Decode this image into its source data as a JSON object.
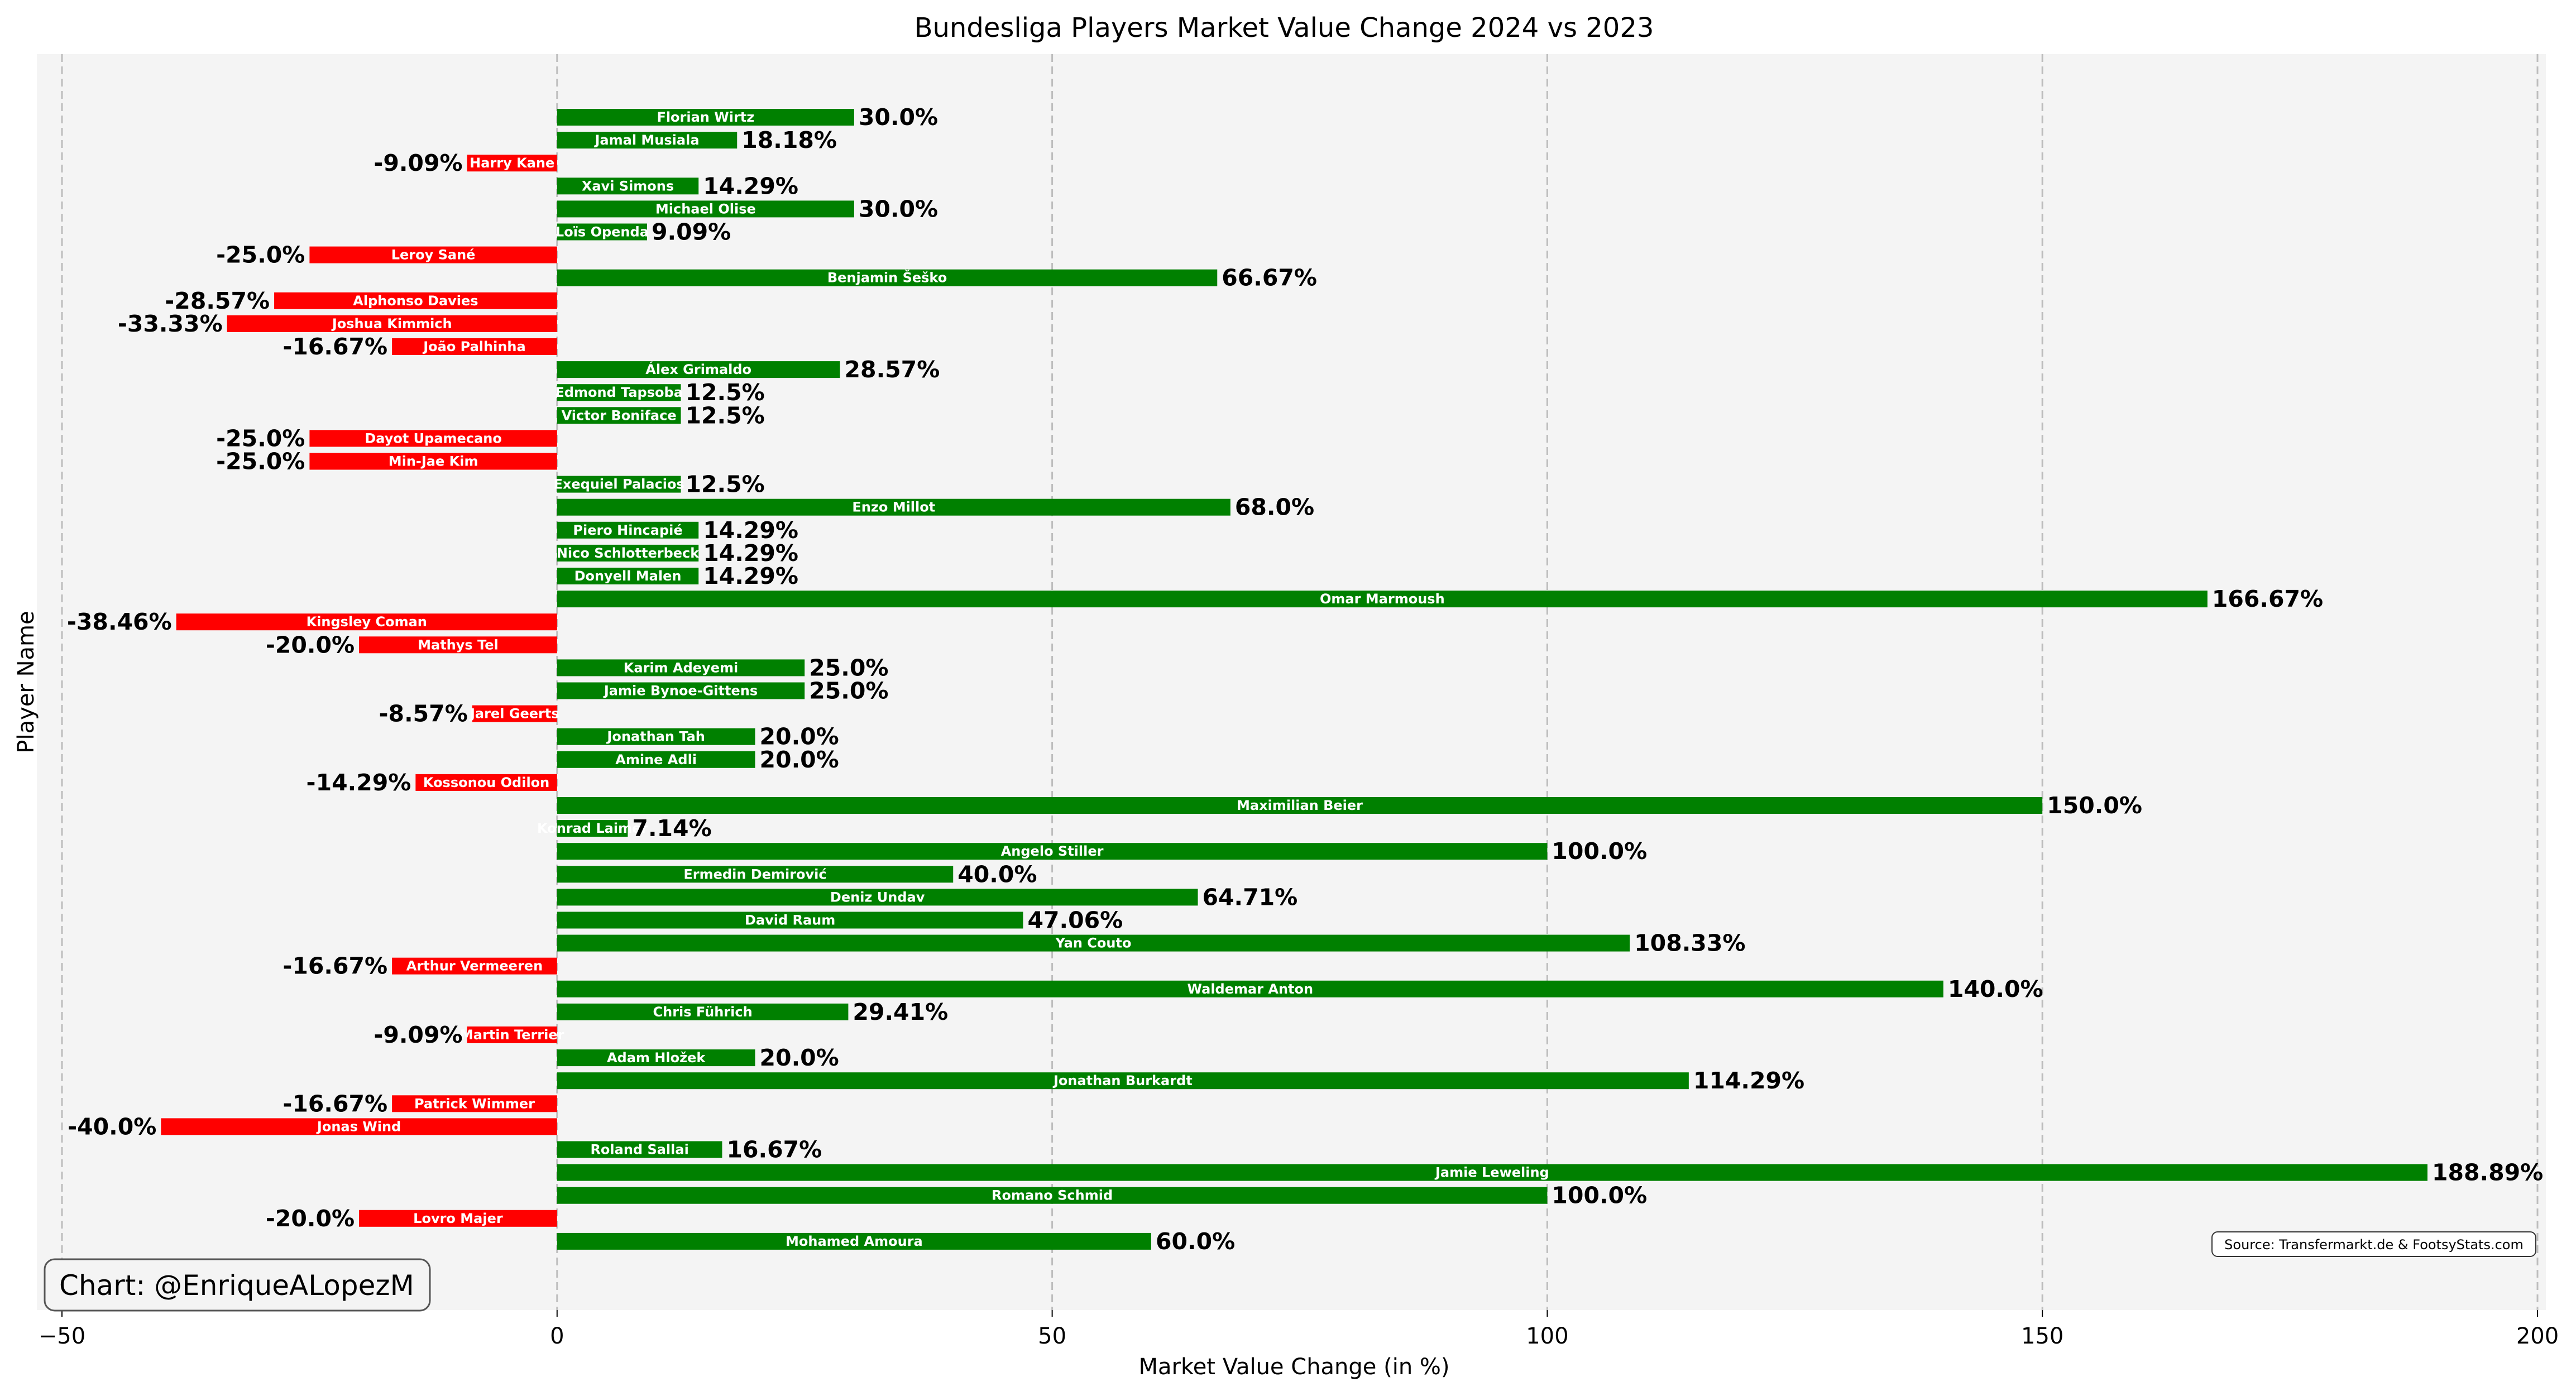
{
  "chart_data": {
    "type": "bar",
    "orientation": "horizontal",
    "title": "Bundesliga Players Market Value Change 2024 vs 2023",
    "xlabel": "Market Value Change (in %)",
    "ylabel": "Player Name",
    "xlim": [
      -50,
      200
    ],
    "xticks": [
      -50,
      0,
      50,
      100,
      150,
      200
    ],
    "grid": "vertical dashed",
    "positive_color": "#008000",
    "negative_color": "#ff0000",
    "credit": "Chart: @EnriqueALopezM",
    "source": "Source: Transfermarkt.de & FootsyStats.com",
    "bars": [
      {
        "name": "Florian Wirtz",
        "value": 30.0,
        "label": "30.0%"
      },
      {
        "name": "Jamal Musiala",
        "value": 18.18,
        "label": "18.18%"
      },
      {
        "name": "Harry Kane",
        "value": -9.09,
        "label": "-9.09%"
      },
      {
        "name": "Xavi Simons",
        "value": 14.29,
        "label": "14.29%"
      },
      {
        "name": "Michael Olise",
        "value": 30.0,
        "label": "30.0%"
      },
      {
        "name": "Loïs Openda",
        "value": 9.09,
        "label": "9.09%"
      },
      {
        "name": "Leroy Sané",
        "value": -25.0,
        "label": "-25.0%"
      },
      {
        "name": "Benjamin Šeško",
        "value": 66.67,
        "label": "66.67%"
      },
      {
        "name": "Alphonso Davies",
        "value": -28.57,
        "label": "-28.57%"
      },
      {
        "name": "Joshua Kimmich",
        "value": -33.33,
        "label": "-33.33%"
      },
      {
        "name": "João Palhinha",
        "value": -16.67,
        "label": "-16.67%"
      },
      {
        "name": "Álex Grimaldo",
        "value": 28.57,
        "label": "28.57%"
      },
      {
        "name": "Edmond Tapsoba",
        "value": 12.5,
        "label": "12.5%"
      },
      {
        "name": "Victor Boniface",
        "value": 12.5,
        "label": "12.5%"
      },
      {
        "name": "Dayot Upamecano",
        "value": -25.0,
        "label": "-25.0%"
      },
      {
        "name": "Min-Jae Kim",
        "value": -25.0,
        "label": "-25.0%"
      },
      {
        "name": "Exequiel Palacios",
        "value": 12.5,
        "label": "12.5%"
      },
      {
        "name": "Enzo Millot",
        "value": 68.0,
        "label": "68.0%"
      },
      {
        "name": "Piero Hincapié",
        "value": 14.29,
        "label": "14.29%"
      },
      {
        "name": "Nico Schlotterbeck",
        "value": 14.29,
        "label": "14.29%"
      },
      {
        "name": "Donyell Malen",
        "value": 14.29,
        "label": "14.29%"
      },
      {
        "name": "Omar Marmoush",
        "value": 166.67,
        "label": "166.67%"
      },
      {
        "name": "Kingsley Coman",
        "value": -38.46,
        "label": "-38.46%"
      },
      {
        "name": "Mathys Tel",
        "value": -20.0,
        "label": "-20.0%"
      },
      {
        "name": "Karim Adeyemi",
        "value": 25.0,
        "label": "25.0%"
      },
      {
        "name": "Jamie Bynoe-Gittens",
        "value": 25.0,
        "label": "25.0%"
      },
      {
        "name": "Jarel Geerts",
        "value": -8.57,
        "label": "-8.57%"
      },
      {
        "name": "Jonathan Tah",
        "value": 20.0,
        "label": "20.0%"
      },
      {
        "name": "Amine Adli",
        "value": 20.0,
        "label": "20.0%"
      },
      {
        "name": "Kossonou Odilon",
        "value": -14.29,
        "label": "-14.29%"
      },
      {
        "name": "Maximilian Beier",
        "value": 150.0,
        "label": "150.0%"
      },
      {
        "name": "Konrad Laimer",
        "value": 7.14,
        "label": "7.14%"
      },
      {
        "name": "Angelo Stiller",
        "value": 100.0,
        "label": "100.0%"
      },
      {
        "name": "Ermedin Demirović",
        "value": 40.0,
        "label": "40.0%"
      },
      {
        "name": "Deniz Undav",
        "value": 64.71,
        "label": "64.71%"
      },
      {
        "name": "David Raum",
        "value": 47.06,
        "label": "47.06%"
      },
      {
        "name": "Yan Couto",
        "value": 108.33,
        "label": "108.33%"
      },
      {
        "name": "Arthur Vermeeren",
        "value": -16.67,
        "label": "-16.67%"
      },
      {
        "name": "Waldemar Anton",
        "value": 140.0,
        "label": "140.0%"
      },
      {
        "name": "Chris Führich",
        "value": 29.41,
        "label": "29.41%"
      },
      {
        "name": "Martin Terrier",
        "value": -9.09,
        "label": "-9.09%"
      },
      {
        "name": "Adam Hložek",
        "value": 20.0,
        "label": "20.0%"
      },
      {
        "name": "Jonathan Burkardt",
        "value": 114.29,
        "label": "114.29%"
      },
      {
        "name": "Patrick Wimmer",
        "value": -16.67,
        "label": "-16.67%"
      },
      {
        "name": "Jonas Wind",
        "value": -40.0,
        "label": "-40.0%"
      },
      {
        "name": "Roland Sallai",
        "value": 16.67,
        "label": "16.67%"
      },
      {
        "name": "Jamie Leweling",
        "value": 188.89,
        "label": "188.89%"
      },
      {
        "name": "Romano Schmid",
        "value": 100.0,
        "label": "100.0%"
      },
      {
        "name": "Lovro Majer",
        "value": -20.0,
        "label": "-20.0%"
      },
      {
        "name": "Mohamed Amoura",
        "value": 60.0,
        "label": "60.0%"
      }
    ]
  }
}
